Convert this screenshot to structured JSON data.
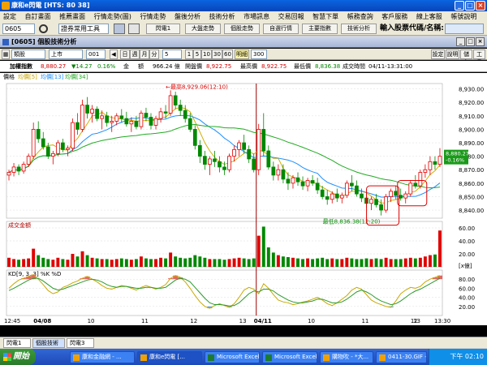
{
  "window": {
    "title": "康和e閃電 [HTS: 80 38]"
  },
  "menu": [
    "設定",
    "自訂畫面",
    "推薦畫面",
    "行情走勢(圖)",
    "行情走勢",
    "盤後分析",
    "技術分析",
    "市場訊息",
    "交易回報",
    "智慧下單",
    "帳務查詢",
    "客戶服務",
    "線上客服",
    "帳號說明"
  ],
  "toolbar": {
    "symbol": "0605",
    "tools_select": "證券常用工具",
    "buttons": [
      "閃電1",
      "大盤走勢",
      "個股走勢",
      "自選行情",
      "主要指數",
      "技術分析"
    ],
    "quick_label": "輸入股票代碼/名稱:"
  },
  "panel": {
    "title": "[0605] 個股技術分析"
  },
  "controls": {
    "kind": "類股",
    "market": "上市",
    "code": "001",
    "periods": [
      "日",
      "週",
      "月",
      "分"
    ],
    "interval": "5",
    "minutes": [
      "1",
      "5",
      "10",
      "30",
      "60"
    ],
    "mode": "明細",
    "count": "300",
    "right_buttons": [
      "設定",
      "說明",
      "儲存",
      "工具"
    ]
  },
  "quote": {
    "name": "加權指數",
    "price": "8,880.27",
    "change": "▼14.27",
    "pct": "0.16%",
    "amount_label": "金",
    "amount_unit": "額",
    "amount": "966.24 億",
    "open_label": "開盤價",
    "open": "8,922.75",
    "high_label": "最高價",
    "high": "8,922.75",
    "low_label": "最低價",
    "low": "8,836.38",
    "time_label": "成交時間",
    "time": "04/11-13:31:00"
  },
  "legend": {
    "a": "價格",
    "b": "均價[5]",
    "c": "均價[13]",
    "d": "均價[34]"
  },
  "vol_legend": "成交金額",
  "kd_legend": "KD[9, 3, 3]  %K  %D",
  "chart_data": [
    {
      "type": "candlestick",
      "title": "",
      "annotations": [
        "最高8,929.06(12:10)",
        "最低8,836.38(12:20)"
      ],
      "price_tag": "8,880.27",
      "price_tag_pct": "-0.16%",
      "y_ticks": [
        "8,930.00",
        "8,920.00",
        "8,910.00",
        "8,900.00",
        "8,890.00",
        "8,880.00",
        "8,870.00",
        "8,860.00",
        "8,850.00",
        "8,840.00"
      ],
      "ylim": [
        8834,
        8934
      ],
      "x_ticks": [
        "12:45",
        "04/08",
        "10",
        "11",
        "12",
        "13",
        "04/11",
        "10",
        "11",
        "12",
        "13",
        "13:30"
      ],
      "ohlc": [
        [
          8866,
          8870,
          8862,
          8868
        ],
        [
          8868,
          8875,
          8865,
          8872
        ],
        [
          8872,
          8874,
          8866,
          8869
        ],
        [
          8869,
          8876,
          8867,
          8874
        ],
        [
          8874,
          8882,
          8872,
          8880
        ],
        [
          8880,
          8905,
          8878,
          8900
        ],
        [
          8900,
          8906,
          8890,
          8893
        ],
        [
          8893,
          8898,
          8885,
          8887
        ],
        [
          8887,
          8890,
          8878,
          8880
        ],
        [
          8880,
          8884,
          8874,
          8882
        ],
        [
          8882,
          8892,
          8880,
          8890
        ],
        [
          8890,
          8893,
          8883,
          8885
        ],
        [
          8885,
          8888,
          8880,
          8886
        ],
        [
          8886,
          8908,
          8884,
          8905
        ],
        [
          8905,
          8912,
          8896,
          8900
        ],
        [
          8900,
          8922,
          8898,
          8918
        ],
        [
          8918,
          8924,
          8908,
          8912
        ],
        [
          8912,
          8918,
          8905,
          8915
        ],
        [
          8915,
          8917,
          8906,
          8908
        ],
        [
          8908,
          8914,
          8900,
          8910
        ],
        [
          8910,
          8913,
          8902,
          8905
        ],
        [
          8905,
          8910,
          8898,
          8906
        ],
        [
          8906,
          8912,
          8903,
          8910
        ],
        [
          8910,
          8915,
          8905,
          8908
        ],
        [
          8908,
          8913,
          8902,
          8904
        ],
        [
          8904,
          8909,
          8898,
          8906
        ],
        [
          8906,
          8910,
          8900,
          8902
        ],
        [
          8902,
          8914,
          8900,
          8912
        ],
        [
          8912,
          8916,
          8906,
          8909
        ],
        [
          8909,
          8912,
          8900,
          8903
        ],
        [
          8903,
          8910,
          8900,
          8908
        ],
        [
          8908,
          8916,
          8905,
          8913
        ],
        [
          8913,
          8918,
          8908,
          8912
        ],
        [
          8912,
          8929,
          8910,
          8925
        ],
        [
          8925,
          8928,
          8915,
          8918
        ],
        [
          8918,
          8922,
          8910,
          8914
        ],
        [
          8914,
          8918,
          8905,
          8908
        ],
        [
          8908,
          8912,
          8898,
          8900
        ],
        [
          8900,
          8903,
          8885,
          8888
        ],
        [
          8888,
          8892,
          8875,
          8880
        ],
        [
          8880,
          8884,
          8870,
          8874
        ],
        [
          8874,
          8880,
          8866,
          8878
        ],
        [
          8878,
          8884,
          8872,
          8876
        ],
        [
          8876,
          8880,
          8868,
          8872
        ],
        [
          8872,
          8876,
          8866,
          8870
        ],
        [
          8870,
          8882,
          8868,
          8880
        ],
        [
          8880,
          8888,
          8876,
          8885
        ],
        [
          8885,
          8892,
          8880,
          8890
        ],
        [
          8890,
          8896,
          8882,
          8885
        ],
        [
          8885,
          8888,
          8875,
          8878
        ],
        [
          8878,
          8882,
          8868,
          8870
        ],
        [
          8870,
          8904,
          8866,
          8900
        ],
        [
          8900,
          8912,
          8880,
          8884
        ],
        [
          8884,
          8888,
          8870,
          8872
        ],
        [
          8872,
          8876,
          8862,
          8866
        ],
        [
          8866,
          8874,
          8862,
          8870
        ],
        [
          8870,
          8874,
          8860,
          8863
        ],
        [
          8863,
          8868,
          8855,
          8860
        ],
        [
          8860,
          8866,
          8856,
          8864
        ],
        [
          8864,
          8868,
          8858,
          8861
        ],
        [
          8861,
          8865,
          8855,
          8858
        ],
        [
          8858,
          8864,
          8854,
          8862
        ],
        [
          8862,
          8866,
          8858,
          8860
        ],
        [
          8860,
          8864,
          8852,
          8855
        ],
        [
          8855,
          8858,
          8848,
          8850
        ],
        [
          8850,
          8855,
          8844,
          8848
        ],
        [
          8848,
          8854,
          8845,
          8852
        ],
        [
          8852,
          8856,
          8846,
          8849
        ],
        [
          8849,
          8853,
          8845,
          8851
        ],
        [
          8851,
          8862,
          8849,
          8860
        ],
        [
          8860,
          8866,
          8854,
          8858
        ],
        [
          8858,
          8862,
          8850,
          8852
        ],
        [
          8852,
          8856,
          8846,
          8849
        ],
        [
          8849,
          8852,
          8842,
          8845
        ],
        [
          8845,
          8850,
          8840,
          8848
        ],
        [
          8848,
          8852,
          8842,
          8844
        ],
        [
          8844,
          8848,
          8836,
          8840
        ],
        [
          8840,
          8852,
          8838,
          8850
        ],
        [
          8850,
          8856,
          8846,
          8854
        ],
        [
          8854,
          8858,
          8848,
          8851
        ],
        [
          8851,
          8856,
          8847,
          8849
        ],
        [
          8849,
          8854,
          8845,
          8852
        ],
        [
          8852,
          8862,
          8850,
          8860
        ],
        [
          8860,
          8866,
          8856,
          8858
        ],
        [
          8858,
          8870,
          8856,
          8868
        ],
        [
          8868,
          8874,
          8864,
          8870
        ],
        [
          8870,
          8880,
          8866,
          8876
        ],
        [
          8876,
          8880,
          8870,
          8874
        ],
        [
          8874,
          8886,
          8872,
          8880
        ]
      ],
      "divider_index": 51
    },
    {
      "type": "bar",
      "title": "",
      "y_ticks": [
        "60.00",
        "40.00",
        "20.00"
      ],
      "unit_label": "[x億]",
      "ylim": [
        0,
        70
      ],
      "values": [
        14,
        12,
        11,
        12,
        13,
        28,
        18,
        14,
        12,
        11,
        14,
        12,
        11,
        20,
        16,
        24,
        18,
        14,
        13,
        12,
        12,
        11,
        12,
        13,
        12,
        11,
        12,
        16,
        13,
        12,
        12,
        14,
        13,
        22,
        16,
        14,
        13,
        14,
        18,
        16,
        14,
        12,
        12,
        12,
        11,
        12,
        13,
        14,
        13,
        12,
        13,
        48,
        62,
        30,
        22,
        18,
        16,
        15,
        14,
        13,
        12,
        13,
        12,
        13,
        14,
        12,
        13,
        12,
        12,
        14,
        13,
        12,
        12,
        13,
        12,
        13,
        12,
        14,
        12,
        12,
        12,
        13,
        14,
        13,
        14,
        16,
        18,
        19,
        56
      ]
    },
    {
      "type": "line",
      "title": "",
      "y_ticks": [
        "80.00",
        "60.00",
        "40.00",
        "20.00"
      ],
      "ylim": [
        0,
        100
      ],
      "k": [
        60,
        70,
        78,
        82,
        86,
        90,
        80,
        68,
        55,
        48,
        52,
        62,
        66,
        72,
        76,
        82,
        86,
        80,
        74,
        66,
        60,
        58,
        62,
        66,
        64,
        60,
        56,
        62,
        66,
        62,
        58,
        62,
        68,
        82,
        88,
        84,
        74,
        60,
        44,
        30,
        20,
        16,
        22,
        26,
        22,
        18,
        26,
        40,
        56,
        62,
        58,
        48,
        70,
        60,
        46,
        34,
        30,
        28,
        24,
        26,
        30,
        32,
        36,
        40,
        34,
        26,
        22,
        28,
        36,
        44,
        56,
        62,
        58,
        46,
        34,
        28,
        24,
        20,
        18,
        32,
        48,
        56,
        62,
        60,
        64,
        74,
        80,
        84,
        88
      ],
      "d": [
        55,
        60,
        66,
        72,
        78,
        82,
        82,
        76,
        68,
        60,
        56,
        58,
        62,
        66,
        70,
        74,
        78,
        80,
        78,
        74,
        68,
        64,
        62,
        64,
        64,
        62,
        60,
        60,
        62,
        62,
        60,
        60,
        62,
        70,
        78,
        82,
        80,
        74,
        62,
        50,
        38,
        28,
        24,
        24,
        23,
        21,
        22,
        28,
        38,
        48,
        54,
        52,
        58,
        58,
        54,
        46,
        40,
        34,
        30,
        28,
        28,
        30,
        32,
        36,
        36,
        32,
        28,
        28,
        30,
        36,
        44,
        52,
        56,
        52,
        46,
        38,
        32,
        28,
        24,
        26,
        32,
        40,
        48,
        54,
        58,
        64,
        70,
        76,
        82
      ]
    }
  ],
  "tabs": [
    "閃電1",
    "個股技術",
    "閃電3"
  ],
  "taskbar": {
    "start": "開始",
    "tasks": [
      "康和金融網 - ...",
      "康和e閃電 [...",
      "Microsoft Excel",
      "Microsoft Excel",
      "購物吹 - *大...",
      "0411-30.GIF -..."
    ],
    "clock": "下午 02:10"
  }
}
